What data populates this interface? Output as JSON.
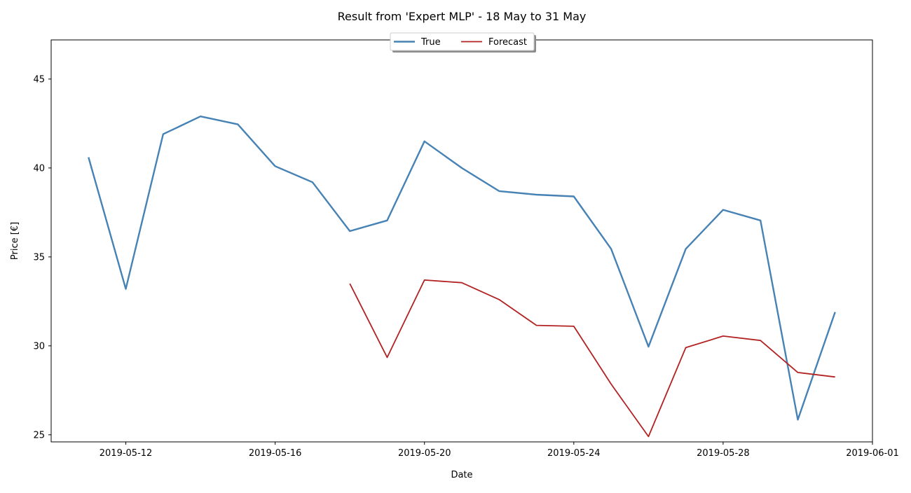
{
  "chart_data": {
    "type": "line",
    "title": "Result from 'Expert MLP' - 18 May to 31 May",
    "xlabel": "Date",
    "ylabel": "Price [€]",
    "xlim": [
      "2019-05-10",
      "2019-06-01"
    ],
    "ylim": [
      24.6,
      47.2
    ],
    "x_ticks": [
      "2019-05-12",
      "2019-05-16",
      "2019-05-20",
      "2019-05-24",
      "2019-05-28",
      "2019-06-01"
    ],
    "y_ticks": [
      25,
      30,
      35,
      40,
      45
    ],
    "grid": false,
    "legend_position": "top-center",
    "series": [
      {
        "name": "True",
        "color": "#4682b4",
        "x": [
          "2019-05-11",
          "2019-05-12",
          "2019-05-13",
          "2019-05-14",
          "2019-05-15",
          "2019-05-16",
          "2019-05-17",
          "2019-05-18",
          "2019-05-19",
          "2019-05-20",
          "2019-05-21",
          "2019-05-22",
          "2019-05-23",
          "2019-05-24",
          "2019-05-25",
          "2019-05-26",
          "2019-05-27",
          "2019-05-28",
          "2019-05-29",
          "2019-05-30",
          "2019-05-31"
        ],
        "y": [
          40.6,
          33.2,
          41.9,
          42.9,
          42.45,
          40.1,
          39.2,
          36.45,
          37.05,
          41.5,
          40.0,
          38.7,
          38.5,
          38.4,
          35.45,
          29.95,
          35.45,
          37.65,
          37.05,
          25.85,
          31.9
        ]
      },
      {
        "name": "Forecast",
        "color": "#b22222",
        "x": [
          "2019-05-18",
          "2019-05-19",
          "2019-05-20",
          "2019-05-21",
          "2019-05-22",
          "2019-05-23",
          "2019-05-24",
          "2019-05-25",
          "2019-05-26",
          "2019-05-27",
          "2019-05-28",
          "2019-05-29",
          "2019-05-30",
          "2019-05-31"
        ],
        "y": [
          33.5,
          29.35,
          33.7,
          33.55,
          32.6,
          31.15,
          31.1,
          27.85,
          24.9,
          29.9,
          30.55,
          30.3,
          28.5,
          28.25
        ]
      }
    ]
  }
}
